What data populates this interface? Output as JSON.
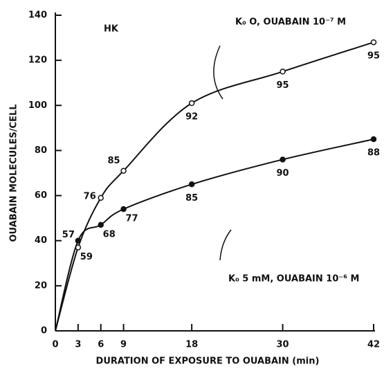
{
  "chart_data": {
    "type": "line",
    "x_label": "DURATION OF EXPOSURE TO OUABAIN (min)",
    "y_label": "OUABAIN MOLECULES/CELL",
    "annotation": "HK",
    "x": [
      0,
      3,
      6,
      9,
      18,
      30,
      42
    ],
    "series": [
      {
        "name": "K₀ O, OUABAIN 10⁻⁷ M",
        "color": "#111111",
        "marker": "open",
        "values": [
          0,
          37,
          59,
          71,
          101,
          115,
          128
        ],
        "point_notes": [
          null,
          "59",
          "76",
          "85",
          "92",
          "95",
          "95"
        ]
      },
      {
        "name": "K₀ 5 mM, OUABAIN 10⁻⁶ M",
        "color": "#111111",
        "marker": "filled",
        "values": [
          0,
          40,
          47,
          54,
          65,
          76,
          85
        ],
        "point_notes": [
          null,
          "57",
          "68",
          "77",
          "85",
          "90",
          "88"
        ]
      }
    ],
    "xlim": [
      0,
      42
    ],
    "xticks": [
      0,
      3,
      6,
      9,
      18,
      30,
      42
    ],
    "ylim": [
      0,
      140
    ],
    "yticks": [
      0,
      20,
      40,
      60,
      80,
      100,
      120,
      140
    ]
  }
}
